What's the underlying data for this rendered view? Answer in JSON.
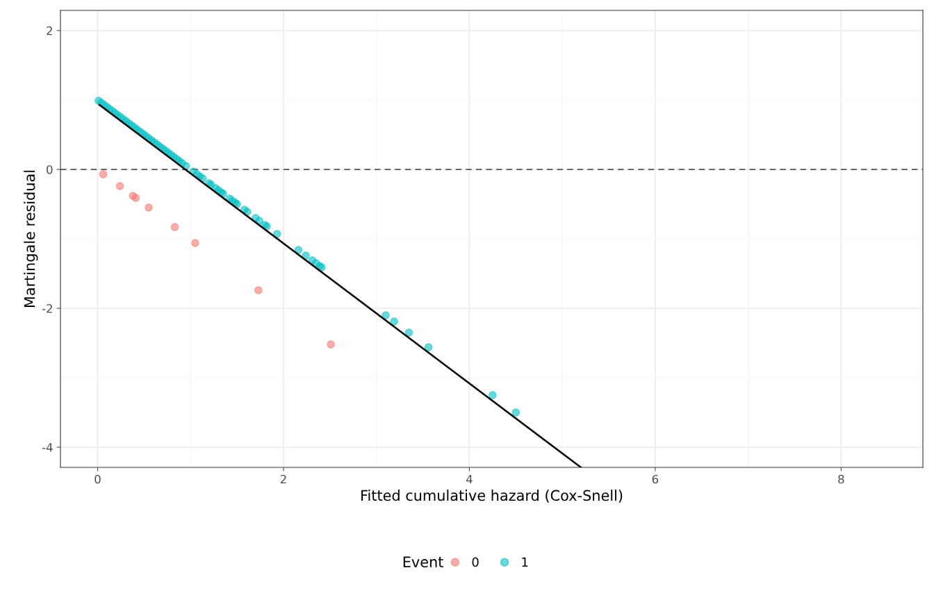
{
  "chart_data": {
    "type": "scatter",
    "xlabel": "Fitted cumulative hazard (Cox-Snell)",
    "ylabel": "Martingale residual",
    "legend_title": "Event",
    "legend": "bottom",
    "grid": true,
    "xlim": [
      -0.4,
      8.88
    ],
    "ylim": [
      -4.29,
      2.29
    ],
    "xticks": [
      0,
      2,
      4,
      6,
      8
    ],
    "yticks": [
      -4,
      -2,
      0,
      2
    ],
    "ref_lines": [
      {
        "axis": "y",
        "value": 0,
        "color": "#666666",
        "line_style": "dashed"
      }
    ],
    "series": [
      {
        "name": "0",
        "marker": "circle",
        "color": "#f8766d",
        "x": [
          0.06,
          0.24,
          0.38,
          0.41,
          0.55,
          0.83,
          1.05,
          1.73,
          2.51
        ],
        "values": [
          -0.07,
          -0.24,
          -0.38,
          -0.41,
          -0.55,
          -0.83,
          -1.06,
          -1.74,
          -2.52
        ]
      },
      {
        "name": "1",
        "marker": "circle",
        "color": "#00bfc4",
        "x": [
          0.01,
          0.04,
          0.07,
          0.1,
          0.13,
          0.16,
          0.19,
          0.22,
          0.25,
          0.28,
          0.31,
          0.34,
          0.37,
          0.4,
          0.43,
          0.46,
          0.49,
          0.52,
          0.55,
          0.58,
          0.61,
          0.64,
          0.67,
          0.7,
          0.73,
          0.76,
          0.79,
          0.82,
          0.85,
          0.88,
          0.91,
          0.95,
          1.03,
          1.07,
          1.1,
          1.13,
          1.2,
          1.22,
          1.27,
          1.3,
          1.33,
          1.35,
          1.42,
          1.45,
          1.48,
          1.5,
          1.58,
          1.61,
          1.7,
          1.74,
          1.8,
          1.82,
          1.93,
          2.16,
          2.24,
          2.31,
          2.35,
          2.39,
          2.41,
          3.1,
          3.19,
          3.35,
          3.56,
          4.25,
          4.5
        ],
        "values": [
          0.99,
          0.96,
          0.93,
          0.9,
          0.87,
          0.84,
          0.81,
          0.78,
          0.75,
          0.72,
          0.69,
          0.66,
          0.63,
          0.6,
          0.57,
          0.54,
          0.51,
          0.48,
          0.45,
          0.42,
          0.39,
          0.36,
          0.33,
          0.3,
          0.27,
          0.24,
          0.21,
          0.18,
          0.15,
          0.12,
          0.09,
          0.05,
          -0.03,
          -0.07,
          -0.1,
          -0.13,
          -0.2,
          -0.22,
          -0.27,
          -0.3,
          -0.33,
          -0.35,
          -0.42,
          -0.45,
          -0.48,
          -0.5,
          -0.58,
          -0.61,
          -0.7,
          -0.74,
          -0.8,
          -0.82,
          -0.93,
          -1.16,
          -1.24,
          -1.31,
          -1.35,
          -1.39,
          -1.41,
          -2.1,
          -2.19,
          -2.35,
          -2.56,
          -3.25,
          -3.5
        ]
      },
      {
        "type": "line",
        "marker": "none",
        "color": "#000000",
        "x": [
          0.02,
          5.2
        ],
        "values": [
          0.93,
          -4.29
        ]
      }
    ]
  }
}
